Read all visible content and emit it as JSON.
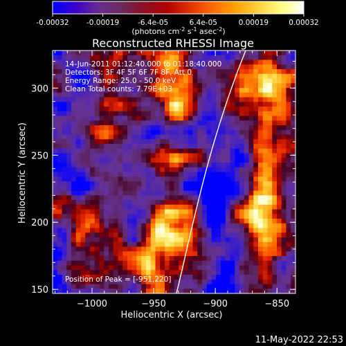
{
  "colorbar": {
    "tick_labels": [
      "-0.00032",
      "-0.00019",
      "-6.4e-05",
      "6.4e-05",
      "0.00019",
      "0.00032"
    ],
    "unit_label": "(photons cm",
    "unit_exp1": "-2",
    "unit_mid": " s",
    "unit_exp2": "-1",
    "unit_tail": " asec",
    "unit_exp3": "-2",
    "unit_close": ")",
    "colors": [
      "#0000ff",
      "#3c00c8",
      "#6a2a90",
      "#6a2a60",
      "#8a1020",
      "#b00000",
      "#e23000",
      "#ff6a00",
      "#ffa000",
      "#ffd040",
      "#ffff80",
      "#ffffff"
    ]
  },
  "plot": {
    "title": "Reconstructed RHESSI Image",
    "info_lines": [
      "14-Jun-2011 01:12:40.000 to 01:18:40.000",
      "Detectors: 3F 4F 5F 6F 7F 8F, Att 0",
      "Energy Range: 25.0 - 50.0 keV",
      "Clean     Total counts: 7.79E+03"
    ],
    "peak_text": "Position of Peak = [-951,220]",
    "xlabel": "Heliocentric X (arcsec)",
    "ylabel": "Heliocentric Y (arcsec)",
    "xticks": [
      -1000,
      -950,
      -900,
      -850
    ],
    "yticks": [
      150,
      200,
      250,
      300
    ],
    "xtick_labels": [
      "−1000",
      "−950",
      "−900",
      "−850"
    ],
    "ytick_labels": [
      "150",
      "200",
      "250",
      "300"
    ],
    "xlim": [
      -1032,
      -835
    ],
    "ylim": [
      147,
      328
    ],
    "limb_color": "#ffffff"
  },
  "footer": {
    "date": "11-May-2022 22:53"
  }
}
